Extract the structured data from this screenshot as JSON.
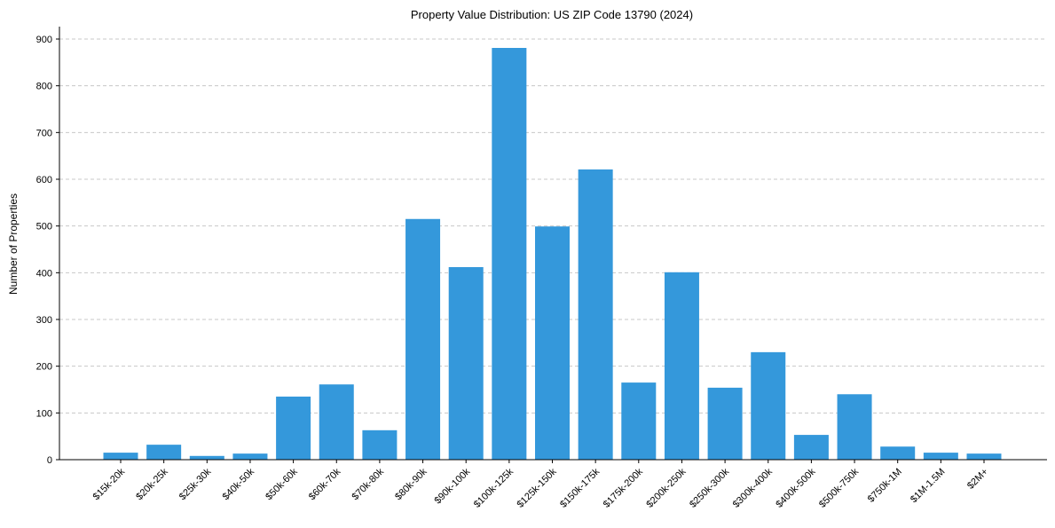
{
  "chart_data": {
    "type": "bar",
    "title": "Property Value Distribution: US ZIP Code 13790 (2024)",
    "xlabel": "",
    "ylabel": "Number of Properties",
    "ylim": [
      0,
      930
    ],
    "yticks": [
      0,
      100,
      200,
      300,
      400,
      500,
      600,
      700,
      800,
      900
    ],
    "grid": "y-dashed",
    "bar_color": "#3498db",
    "categories": [
      "$15k-20k",
      "$20k-25k",
      "$25k-30k",
      "$40k-50k",
      "$50k-60k",
      "$60k-70k",
      "$70k-80k",
      "$80k-90k",
      "$90k-100k",
      "$100k-125k",
      "$125k-150k",
      "$150k-175k",
      "$175k-200k",
      "$200k-250k",
      "$250k-300k",
      "$300k-400k",
      "$400k-500k",
      "$500k-750k",
      "$750k-1M",
      "$1M-1.5M",
      "$2M+"
    ],
    "values": [
      15,
      32,
      8,
      13,
      135,
      161,
      63,
      515,
      412,
      881,
      499,
      621,
      165,
      401,
      154,
      230,
      53,
      140,
      28,
      15,
      13
    ]
  }
}
